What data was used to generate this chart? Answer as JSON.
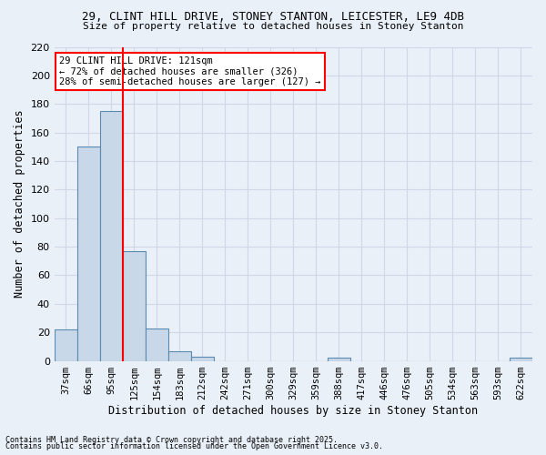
{
  "title1": "29, CLINT HILL DRIVE, STONEY STANTON, LEICESTER, LE9 4DB",
  "title2": "Size of property relative to detached houses in Stoney Stanton",
  "xlabel": "Distribution of detached houses by size in Stoney Stanton",
  "ylabel": "Number of detached properties",
  "footnote1": "Contains HM Land Registry data © Crown copyright and database right 2025.",
  "footnote2": "Contains public sector information licensed under the Open Government Licence v3.0.",
  "bin_labels": [
    "37sqm",
    "66sqm",
    "95sqm",
    "125sqm",
    "154sqm",
    "183sqm",
    "212sqm",
    "242sqm",
    "271sqm",
    "300sqm",
    "329sqm",
    "359sqm",
    "388sqm",
    "417sqm",
    "446sqm",
    "476sqm",
    "505sqm",
    "534sqm",
    "563sqm",
    "593sqm",
    "622sqm"
  ],
  "bar_values": [
    22,
    150,
    175,
    77,
    23,
    7,
    3,
    0,
    0,
    0,
    0,
    0,
    2,
    0,
    0,
    0,
    0,
    0,
    0,
    0,
    2
  ],
  "bar_color": "#c8d8e8",
  "bar_edge_color": "#5a8ab0",
  "grid_color": "#d0d8e8",
  "background_color": "#eaf0f8",
  "annotation_text": "29 CLINT HILL DRIVE: 121sqm\n← 72% of detached houses are smaller (326)\n28% of semi-detached houses are larger (127) →",
  "annotation_box_color": "white",
  "annotation_edge_color": "red",
  "ylim": [
    0,
    220
  ],
  "yticks": [
    0,
    20,
    40,
    60,
    80,
    100,
    120,
    140,
    160,
    180,
    200,
    220
  ],
  "red_line_bin_index": 2,
  "bar_width": 1.0
}
